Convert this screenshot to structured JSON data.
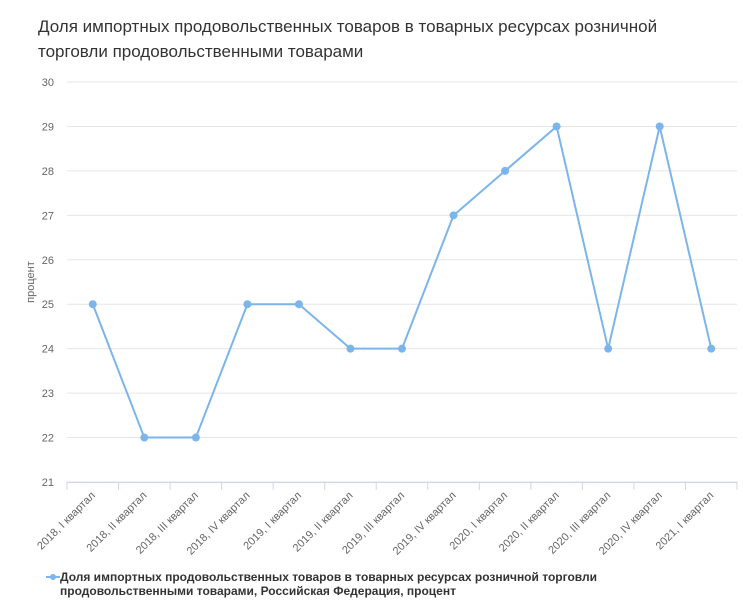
{
  "chart_data": {
    "type": "line",
    "title": "Доля импортных продовольственных товаров в товарных ресурсах розничной торговли продовольственными товарами",
    "ylabel": "процент",
    "xlabel": "",
    "ylim": [
      21,
      30
    ],
    "yticks": [
      "30",
      "29",
      "28",
      "27",
      "26",
      "25",
      "24",
      "23",
      "22",
      "21"
    ],
    "grid": true,
    "legend_position": "bottom-left",
    "categories": [
      "2018, I квартал",
      "2018, II квартал",
      "2018, III квартал",
      "2018, IV квартал",
      "2019, I квартал",
      "2019, II квартал",
      "2019, III квартал",
      "2019, IV квартал",
      "2020, I квартал",
      "2020, II квартал",
      "2020, III квартал",
      "2020, IV квартал",
      "2021, I квартал"
    ],
    "series": [
      {
        "name": "Доля импортных продовольственных товаров в товарных ресурсах розничной торговли продовольственными товарами, Российская Федерация, процент",
        "color": "#7cb5ec",
        "values": [
          25,
          22,
          22,
          25,
          25,
          24,
          24,
          27,
          28,
          29,
          24,
          29,
          24
        ]
      }
    ]
  }
}
